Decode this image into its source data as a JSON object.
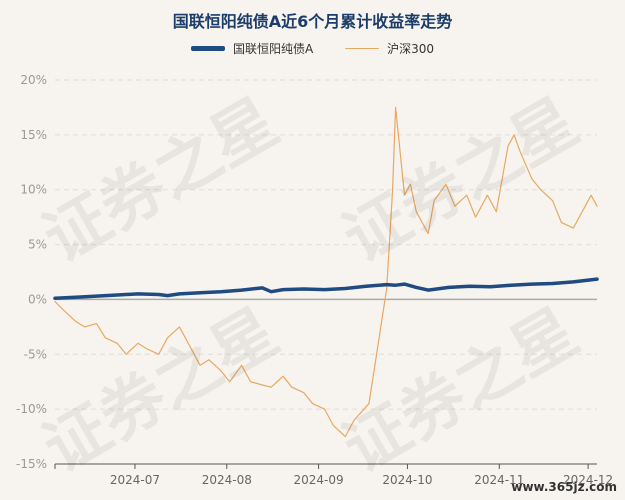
{
  "chart_data": {
    "type": "line",
    "title": "国联恒阳纯债A近6个月累计收益率走势",
    "x_start": "2024-06-04",
    "x_end": "2024-12-04",
    "x_ticks": [
      "2024-07",
      "2024-08",
      "2024-09",
      "2024-10",
      "2024-11",
      "2024-12"
    ],
    "y_ticks": [
      "20%",
      "15%",
      "10%",
      "5%",
      "0%",
      "-5%",
      "-10%",
      "-15%"
    ],
    "ylim": [
      -15,
      20
    ],
    "y_unit": "%",
    "grid": "horizontal-dashed",
    "legend_position": "top-center",
    "series": [
      {
        "name": "国联恒阳纯债A",
        "color": "#1f4b82",
        "style": "thick",
        "x": [
          "2024-06-04",
          "2024-06-11",
          "2024-06-18",
          "2024-06-25",
          "2024-07-02",
          "2024-07-09",
          "2024-07-12",
          "2024-07-16",
          "2024-07-23",
          "2024-07-30",
          "2024-08-06",
          "2024-08-13",
          "2024-08-16",
          "2024-08-20",
          "2024-08-27",
          "2024-09-03",
          "2024-09-10",
          "2024-09-17",
          "2024-09-24",
          "2024-09-27",
          "2024-09-30",
          "2024-10-04",
          "2024-10-08",
          "2024-10-15",
          "2024-10-22",
          "2024-10-29",
          "2024-11-05",
          "2024-11-12",
          "2024-11-19",
          "2024-11-26",
          "2024-12-04"
        ],
        "values": [
          0.1,
          0.2,
          0.3,
          0.4,
          0.5,
          0.45,
          0.35,
          0.5,
          0.6,
          0.7,
          0.85,
          1.05,
          0.7,
          0.9,
          0.95,
          0.9,
          1.0,
          1.2,
          1.35,
          1.3,
          1.4,
          1.1,
          0.85,
          1.1,
          1.2,
          1.15,
          1.3,
          1.4,
          1.45,
          1.6,
          1.85
        ]
      },
      {
        "name": "沪深300",
        "color": "#e8a862",
        "style": "thin",
        "x": [
          "2024-06-04",
          "2024-06-07",
          "2024-06-11",
          "2024-06-14",
          "2024-06-18",
          "2024-06-21",
          "2024-06-25",
          "2024-06-28",
          "2024-07-02",
          "2024-07-05",
          "2024-07-09",
          "2024-07-12",
          "2024-07-16",
          "2024-07-19",
          "2024-07-23",
          "2024-07-26",
          "2024-07-30",
          "2024-08-02",
          "2024-08-06",
          "2024-08-09",
          "2024-08-13",
          "2024-08-16",
          "2024-08-20",
          "2024-08-23",
          "2024-08-27",
          "2024-08-30",
          "2024-09-03",
          "2024-09-06",
          "2024-09-10",
          "2024-09-13",
          "2024-09-18",
          "2024-09-20",
          "2024-09-24",
          "2024-09-26",
          "2024-09-27",
          "2024-09-30",
          "2024-10-02",
          "2024-10-04",
          "2024-10-08",
          "2024-10-10",
          "2024-10-14",
          "2024-10-17",
          "2024-10-21",
          "2024-10-24",
          "2024-10-28",
          "2024-10-31",
          "2024-11-04",
          "2024-11-06",
          "2024-11-08",
          "2024-11-12",
          "2024-11-15",
          "2024-11-19",
          "2024-11-22",
          "2024-11-26",
          "2024-11-29",
          "2024-12-02",
          "2024-12-04"
        ],
        "values": [
          -0.2,
          -1.0,
          -2.0,
          -2.5,
          -2.2,
          -3.5,
          -4.0,
          -5.0,
          -4.0,
          -4.5,
          -5.0,
          -3.5,
          -2.5,
          -4.0,
          -6.0,
          -5.5,
          -6.5,
          -7.5,
          -6.0,
          -7.5,
          -7.8,
          -8.0,
          -7.0,
          -8.0,
          -8.5,
          -9.5,
          -10.0,
          -11.5,
          -12.5,
          -11.0,
          -9.5,
          -6.0,
          1.0,
          10.0,
          17.5,
          9.5,
          10.5,
          8.0,
          6.0,
          9.0,
          10.5,
          8.5,
          9.5,
          7.5,
          9.5,
          8.0,
          14.0,
          15.0,
          13.5,
          11.0,
          10.0,
          9.0,
          7.0,
          6.5,
          8.0,
          9.5,
          8.5
        ]
      }
    ]
  },
  "watermark": {
    "text": "证券之星",
    "site": "www.365jz.com"
  }
}
